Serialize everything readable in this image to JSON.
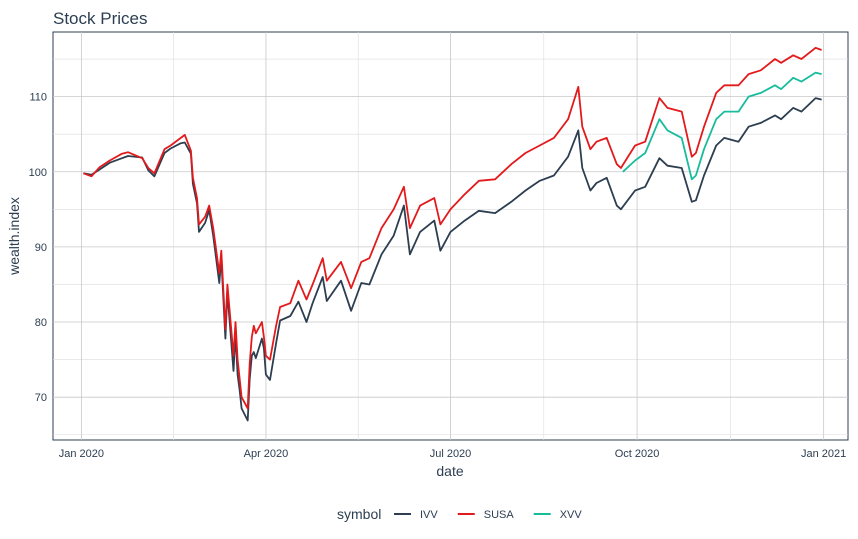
{
  "chart_data": {
    "type": "line",
    "title": "Stock Prices",
    "xlabel": "date",
    "ylabel": "wealth.index",
    "xlim": [
      "2019-12-18",
      "2021-01-13"
    ],
    "ylim": [
      64.3,
      118.6
    ],
    "x_ticks": [
      {
        "label": "Jan 2020",
        "date": "2020-01-01"
      },
      {
        "label": "Apr 2020",
        "date": "2020-04-01"
      },
      {
        "label": "Jul 2020",
        "date": "2020-07-01"
      },
      {
        "label": "Oct 2020",
        "date": "2020-10-01"
      },
      {
        "label": "Jan 2021",
        "date": "2021-01-01"
      }
    ],
    "y_ticks": [
      70,
      80,
      90,
      100,
      110
    ],
    "grid": true,
    "legend": {
      "title": "symbol",
      "position": "bottom"
    },
    "series": [
      {
        "name": "IVV",
        "color": "#2c3e50",
        "points": [
          [
            "2020-01-02",
            99.8
          ],
          [
            "2020-01-06",
            99.6
          ],
          [
            "2020-01-10",
            100.3
          ],
          [
            "2020-01-15",
            101.2
          ],
          [
            "2020-01-21",
            101.8
          ],
          [
            "2020-01-24",
            102.1
          ],
          [
            "2020-01-31",
            101.9
          ],
          [
            "2020-02-03",
            100.2
          ],
          [
            "2020-02-06",
            99.4
          ],
          [
            "2020-02-11",
            102.5
          ],
          [
            "2020-02-14",
            103.1
          ],
          [
            "2020-02-19",
            103.8
          ],
          [
            "2020-02-21",
            103.9
          ],
          [
            "2020-02-24",
            102.4
          ],
          [
            "2020-02-25",
            98.4
          ],
          [
            "2020-02-27",
            95.8
          ],
          [
            "2020-02-28",
            92.0
          ],
          [
            "2020-03-02",
            93.2
          ],
          [
            "2020-03-04",
            94.9
          ],
          [
            "2020-03-06",
            91.5
          ],
          [
            "2020-03-09",
            85.2
          ],
          [
            "2020-03-10",
            88.5
          ],
          [
            "2020-03-12",
            77.8
          ],
          [
            "2020-03-13",
            84.0
          ],
          [
            "2020-03-16",
            73.5
          ],
          [
            "2020-03-17",
            78.5
          ],
          [
            "2020-03-18",
            73.0
          ],
          [
            "2020-03-19",
            71.0
          ],
          [
            "2020-03-20",
            68.5
          ],
          [
            "2020-03-23",
            66.9
          ],
          [
            "2020-03-24",
            72.4
          ],
          [
            "2020-03-25",
            75.5
          ],
          [
            "2020-03-26",
            76.0
          ],
          [
            "2020-03-27",
            75.2
          ],
          [
            "2020-03-30",
            77.8
          ],
          [
            "2020-03-31",
            76.5
          ],
          [
            "2020-04-01",
            73.0
          ],
          [
            "2020-04-03",
            72.3
          ],
          [
            "2020-04-06",
            77.2
          ],
          [
            "2020-04-08",
            80.2
          ],
          [
            "2020-04-13",
            80.8
          ],
          [
            "2020-04-17",
            82.7
          ],
          [
            "2020-04-21",
            80.0
          ],
          [
            "2020-04-24",
            82.5
          ],
          [
            "2020-04-29",
            86.0
          ],
          [
            "2020-05-01",
            82.8
          ],
          [
            "2020-05-08",
            85.5
          ],
          [
            "2020-05-13",
            81.5
          ],
          [
            "2020-05-18",
            85.2
          ],
          [
            "2020-05-22",
            85.0
          ],
          [
            "2020-05-28",
            89.0
          ],
          [
            "2020-06-03",
            91.5
          ],
          [
            "2020-06-08",
            95.5
          ],
          [
            "2020-06-11",
            89.0
          ],
          [
            "2020-06-16",
            92.0
          ],
          [
            "2020-06-23",
            93.5
          ],
          [
            "2020-06-26",
            89.5
          ],
          [
            "2020-07-01",
            92.0
          ],
          [
            "2020-07-08",
            93.5
          ],
          [
            "2020-07-15",
            94.8
          ],
          [
            "2020-07-23",
            94.5
          ],
          [
            "2020-07-31",
            96.0
          ],
          [
            "2020-08-07",
            97.5
          ],
          [
            "2020-08-14",
            98.8
          ],
          [
            "2020-08-21",
            99.5
          ],
          [
            "2020-08-28",
            102.0
          ],
          [
            "2020-09-02",
            105.5
          ],
          [
            "2020-09-04",
            100.5
          ],
          [
            "2020-09-08",
            97.5
          ],
          [
            "2020-09-11",
            98.5
          ],
          [
            "2020-09-16",
            99.2
          ],
          [
            "2020-09-21",
            95.5
          ],
          [
            "2020-09-23",
            95.0
          ],
          [
            "2020-09-30",
            97.5
          ],
          [
            "2020-10-05",
            98.0
          ],
          [
            "2020-10-12",
            101.8
          ],
          [
            "2020-10-16",
            100.8
          ],
          [
            "2020-10-23",
            100.5
          ],
          [
            "2020-10-28",
            96.0
          ],
          [
            "2020-10-30",
            96.2
          ],
          [
            "2020-11-03",
            99.5
          ],
          [
            "2020-11-09",
            103.5
          ],
          [
            "2020-11-13",
            104.5
          ],
          [
            "2020-11-20",
            104.0
          ],
          [
            "2020-11-25",
            106.0
          ],
          [
            "2020-12-01",
            106.5
          ],
          [
            "2020-12-08",
            107.5
          ],
          [
            "2020-12-11",
            107.0
          ],
          [
            "2020-12-17",
            108.5
          ],
          [
            "2020-12-21",
            108.0
          ],
          [
            "2020-12-28",
            109.8
          ],
          [
            "2020-12-31",
            109.6
          ]
        ]
      },
      {
        "name": "SUSA",
        "color": "#e31a1c",
        "points": [
          [
            "2020-01-02",
            99.8
          ],
          [
            "2020-01-06",
            99.4
          ],
          [
            "2020-01-10",
            100.6
          ],
          [
            "2020-01-15",
            101.5
          ],
          [
            "2020-01-21",
            102.4
          ],
          [
            "2020-01-24",
            102.6
          ],
          [
            "2020-01-31",
            101.8
          ],
          [
            "2020-02-03",
            100.5
          ],
          [
            "2020-02-06",
            99.8
          ],
          [
            "2020-02-11",
            103.0
          ],
          [
            "2020-02-14",
            103.5
          ],
          [
            "2020-02-19",
            104.5
          ],
          [
            "2020-02-21",
            104.9
          ],
          [
            "2020-02-24",
            102.8
          ],
          [
            "2020-02-25",
            99.2
          ],
          [
            "2020-02-27",
            96.5
          ],
          [
            "2020-02-28",
            93.0
          ],
          [
            "2020-03-02",
            94.0
          ],
          [
            "2020-03-04",
            95.5
          ],
          [
            "2020-03-06",
            92.5
          ],
          [
            "2020-03-09",
            86.5
          ],
          [
            "2020-03-10",
            89.5
          ],
          [
            "2020-03-12",
            79.0
          ],
          [
            "2020-03-13",
            85.0
          ],
          [
            "2020-03-16",
            75.5
          ],
          [
            "2020-03-17",
            80.0
          ],
          [
            "2020-03-18",
            75.0
          ],
          [
            "2020-03-19",
            72.5
          ],
          [
            "2020-03-20",
            70.0
          ],
          [
            "2020-03-23",
            68.5
          ],
          [
            "2020-03-24",
            74.5
          ],
          [
            "2020-03-25",
            78.0
          ],
          [
            "2020-03-26",
            79.5
          ],
          [
            "2020-03-27",
            78.5
          ],
          [
            "2020-03-30",
            80.0
          ],
          [
            "2020-03-31",
            78.0
          ],
          [
            "2020-04-01",
            75.5
          ],
          [
            "2020-04-03",
            75.0
          ],
          [
            "2020-04-06",
            79.5
          ],
          [
            "2020-04-08",
            82.0
          ],
          [
            "2020-04-13",
            82.5
          ],
          [
            "2020-04-17",
            85.5
          ],
          [
            "2020-04-21",
            83.0
          ],
          [
            "2020-04-24",
            85.0
          ],
          [
            "2020-04-29",
            88.5
          ],
          [
            "2020-05-01",
            85.5
          ],
          [
            "2020-05-08",
            88.0
          ],
          [
            "2020-05-13",
            84.5
          ],
          [
            "2020-05-18",
            88.0
          ],
          [
            "2020-05-22",
            88.5
          ],
          [
            "2020-05-28",
            92.5
          ],
          [
            "2020-06-03",
            95.0
          ],
          [
            "2020-06-08",
            98.0
          ],
          [
            "2020-06-11",
            92.5
          ],
          [
            "2020-06-16",
            95.5
          ],
          [
            "2020-06-23",
            96.5
          ],
          [
            "2020-06-26",
            93.0
          ],
          [
            "2020-07-01",
            95.0
          ],
          [
            "2020-07-08",
            97.0
          ],
          [
            "2020-07-15",
            98.8
          ],
          [
            "2020-07-23",
            99.0
          ],
          [
            "2020-07-31",
            101.0
          ],
          [
            "2020-08-07",
            102.5
          ],
          [
            "2020-08-14",
            103.5
          ],
          [
            "2020-08-21",
            104.5
          ],
          [
            "2020-08-28",
            107.0
          ],
          [
            "2020-09-02",
            111.3
          ],
          [
            "2020-09-04",
            106.0
          ],
          [
            "2020-09-08",
            103.0
          ],
          [
            "2020-09-11",
            104.0
          ],
          [
            "2020-09-16",
            104.5
          ],
          [
            "2020-09-21",
            101.0
          ],
          [
            "2020-09-23",
            100.5
          ],
          [
            "2020-09-30",
            103.5
          ],
          [
            "2020-10-05",
            104.0
          ],
          [
            "2020-10-12",
            109.8
          ],
          [
            "2020-10-16",
            108.5
          ],
          [
            "2020-10-23",
            108.0
          ],
          [
            "2020-10-28",
            102.0
          ],
          [
            "2020-10-30",
            102.5
          ],
          [
            "2020-11-03",
            106.0
          ],
          [
            "2020-11-09",
            110.5
          ],
          [
            "2020-11-13",
            111.5
          ],
          [
            "2020-11-20",
            111.5
          ],
          [
            "2020-11-25",
            113.0
          ],
          [
            "2020-12-01",
            113.5
          ],
          [
            "2020-12-08",
            115.0
          ],
          [
            "2020-12-11",
            114.5
          ],
          [
            "2020-12-17",
            115.5
          ],
          [
            "2020-12-21",
            115.0
          ],
          [
            "2020-12-28",
            116.5
          ],
          [
            "2020-12-31",
            116.2
          ]
        ]
      },
      {
        "name": "XVV",
        "color": "#18bc9c",
        "points": [
          [
            "2020-09-24",
            100.0
          ],
          [
            "2020-09-30",
            101.5
          ],
          [
            "2020-10-05",
            102.5
          ],
          [
            "2020-10-12",
            107.0
          ],
          [
            "2020-10-16",
            105.5
          ],
          [
            "2020-10-23",
            104.5
          ],
          [
            "2020-10-28",
            99.0
          ],
          [
            "2020-10-30",
            99.5
          ],
          [
            "2020-11-03",
            103.0
          ],
          [
            "2020-11-09",
            107.0
          ],
          [
            "2020-11-13",
            108.0
          ],
          [
            "2020-11-20",
            108.0
          ],
          [
            "2020-11-25",
            110.0
          ],
          [
            "2020-12-01",
            110.5
          ],
          [
            "2020-12-08",
            111.5
          ],
          [
            "2020-12-11",
            111.0
          ],
          [
            "2020-12-17",
            112.5
          ],
          [
            "2020-12-21",
            112.0
          ],
          [
            "2020-12-28",
            113.2
          ],
          [
            "2020-12-31",
            113.0
          ]
        ]
      }
    ]
  }
}
